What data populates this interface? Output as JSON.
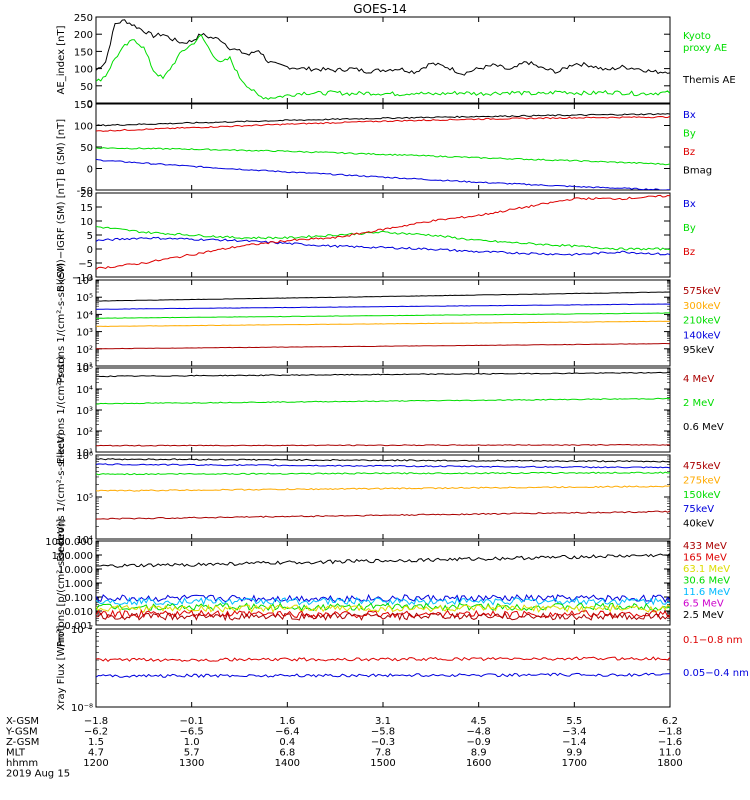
{
  "title": "GOES-14",
  "colors": {
    "black": "#000000",
    "red": "#dd0000",
    "green": "#00dd00",
    "blue": "#0000dd",
    "orange": "#ffaa00",
    "cyan": "#00bbff",
    "magenta": "#cc00cc",
    "yellow": "#dddd00",
    "darkred": "#aa0000"
  },
  "chart_data": [
    {
      "type": "line",
      "id": "ae",
      "ylabel": "AE_index [nT]",
      "ylim": [
        0,
        250
      ],
      "scale": "linear",
      "yticks": [
        0,
        50,
        100,
        150,
        200,
        250
      ],
      "tick_labels": [
        "0",
        "50",
        "100",
        "150",
        "200",
        "250"
      ],
      "legend": [
        {
          "label": "Kyoto",
          "color": "green"
        },
        {
          "label": "proxy AE",
          "color": "green"
        },
        {
          "label": "Themis AE",
          "color": "black"
        }
      ],
      "series": [
        {
          "name": "Themis AE",
          "color": "black",
          "x": [
            1200,
            1206,
            1212,
            1218,
            1224,
            1230,
            1236,
            1242,
            1248,
            1254,
            1300,
            1306,
            1312,
            1318,
            1324,
            1330,
            1336,
            1342,
            1348,
            1354,
            1400,
            1410,
            1420,
            1430,
            1440,
            1450,
            1500,
            1510,
            1520,
            1530,
            1540,
            1550,
            1600,
            1610,
            1620,
            1630,
            1640,
            1650,
            1700,
            1710,
            1720,
            1730,
            1740,
            1750,
            1800
          ],
          "y": [
            95,
            120,
            230,
            240,
            225,
            210,
            195,
            200,
            185,
            175,
            180,
            200,
            190,
            185,
            160,
            150,
            140,
            155,
            120,
            110,
            105,
            100,
            98,
            95,
            100,
            92,
            96,
            100,
            90,
            115,
            105,
            85,
            100,
            110,
            95,
            120,
            100,
            90,
            115,
            110,
            95,
            105,
            100,
            90,
            92
          ]
        },
        {
          "name": "Kyoto proxy AE",
          "color": "green",
          "x": [
            1200,
            1206,
            1212,
            1218,
            1224,
            1230,
            1236,
            1242,
            1248,
            1254,
            1300,
            1306,
            1312,
            1318,
            1324,
            1330,
            1336,
            1342,
            1348,
            1354,
            1400,
            1410,
            1420,
            1430,
            1440,
            1450,
            1500,
            1510,
            1520,
            1530,
            1540,
            1550,
            1600,
            1610,
            1620,
            1630,
            1640,
            1650,
            1700,
            1710,
            1720,
            1730,
            1740,
            1750,
            1800
          ],
          "y": [
            60,
            80,
            130,
            165,
            185,
            160,
            95,
            70,
            110,
            150,
            170,
            195,
            150,
            115,
            130,
            75,
            45,
            20,
            15,
            18,
            22,
            30,
            28,
            30,
            27,
            29,
            28,
            26,
            30,
            25,
            28,
            30,
            27,
            29,
            31,
            28,
            26,
            33,
            30,
            28,
            32,
            30,
            27,
            29,
            30
          ]
        }
      ]
    },
    {
      "type": "line",
      "id": "bsm",
      "ylabel": "B (SM) [nT]",
      "ylim": [
        -50,
        150
      ],
      "scale": "linear",
      "yticks": [
        -50,
        0,
        50,
        100,
        150
      ],
      "tick_labels": [
        "-50",
        "0",
        "50",
        "100",
        "150"
      ],
      "legend": [
        {
          "label": "Bx",
          "color": "blue"
        },
        {
          "label": "By",
          "color": "green"
        },
        {
          "label": "Bz",
          "color": "red"
        },
        {
          "label": "Bmag",
          "color": "black"
        }
      ],
      "series": [
        {
          "name": "Bx",
          "color": "blue",
          "x": [
            1200,
            1300,
            1400,
            1500,
            1600,
            1700,
            1800
          ],
          "y": [
            20,
            5,
            -8,
            -20,
            -32,
            -42,
            -50
          ]
        },
        {
          "name": "By",
          "color": "green",
          "x": [
            1200,
            1300,
            1400,
            1500,
            1600,
            1700,
            1800
          ],
          "y": [
            48,
            45,
            40,
            33,
            25,
            18,
            10
          ]
        },
        {
          "name": "Bz",
          "color": "red",
          "x": [
            1200,
            1300,
            1400,
            1500,
            1600,
            1700,
            1800
          ],
          "y": [
            87,
            95,
            103,
            110,
            115,
            118,
            120
          ]
        },
        {
          "name": "Bmag",
          "color": "black",
          "x": [
            1200,
            1300,
            1400,
            1500,
            1600,
            1700,
            1800
          ],
          "y": [
            100,
            106,
            112,
            117,
            121,
            124,
            127
          ]
        }
      ]
    },
    {
      "type": "line",
      "id": "bigrf",
      "ylabel": "B (SM)−IGRF (SM) [nT]",
      "ylim": [
        -10,
        20
      ],
      "scale": "linear",
      "yticks": [
        -10,
        -5,
        0,
        5,
        10,
        15,
        20
      ],
      "tick_labels": [
        "−10",
        "−5",
        "0",
        "5",
        "10",
        "15",
        "20"
      ],
      "legend": [
        {
          "label": "Bx",
          "color": "blue"
        },
        {
          "label": "By",
          "color": "green"
        },
        {
          "label": "Bz",
          "color": "red"
        }
      ],
      "series": [
        {
          "name": "Bx",
          "color": "blue",
          "x": [
            1200,
            1230,
            1300,
            1330,
            1400,
            1430,
            1500,
            1530,
            1600,
            1630,
            1700,
            1730,
            1800
          ],
          "y": [
            3,
            4,
            3.5,
            3,
            2,
            1,
            0.5,
            0,
            -1,
            -1.5,
            -2,
            -1,
            -2
          ]
        },
        {
          "name": "By",
          "color": "green",
          "x": [
            1200,
            1230,
            1300,
            1330,
            1400,
            1430,
            1500,
            1530,
            1600,
            1630,
            1700,
            1730,
            1800
          ],
          "y": [
            8,
            6,
            5,
            4,
            4,
            5,
            6,
            5,
            3,
            2,
            1,
            0,
            0
          ]
        },
        {
          "name": "Bz",
          "color": "red",
          "x": [
            1200,
            1230,
            1300,
            1330,
            1400,
            1430,
            1500,
            1530,
            1600,
            1630,
            1700,
            1730,
            1800
          ],
          "y": [
            -7,
            -5,
            -2,
            1,
            3,
            4,
            7,
            10,
            12,
            15,
            18,
            18,
            19
          ]
        }
      ]
    },
    {
      "type": "line",
      "id": "protons1",
      "ylabel": "Protons 1/(cm²-s-sr-keV)",
      "ylim": [
        10,
        1000000
      ],
      "scale": "log",
      "yticks": [
        10,
        100,
        1000,
        10000,
        100000,
        1000000
      ],
      "tick_labels": [
        "10¹",
        "10²",
        "10³",
        "10⁴",
        "10⁵",
        "10⁶"
      ],
      "legend": [
        {
          "label": "575keV",
          "color": "darkred"
        },
        {
          "label": "300keV",
          "color": "orange"
        },
        {
          "label": "210keV",
          "color": "green"
        },
        {
          "label": "140keV",
          "color": "blue"
        },
        {
          "label": "95keV",
          "color": "black"
        }
      ],
      "series": [
        {
          "name": "95keV",
          "color": "black",
          "x": [
            1200,
            1800
          ],
          "y": [
            60000,
            200000
          ]
        },
        {
          "name": "140keV",
          "color": "blue",
          "x": [
            1200,
            1800
          ],
          "y": [
            20000,
            40000
          ]
        },
        {
          "name": "210keV",
          "color": "green",
          "x": [
            1200,
            1800
          ],
          "y": [
            6000,
            12000
          ]
        },
        {
          "name": "300keV",
          "color": "orange",
          "x": [
            1200,
            1800
          ],
          "y": [
            2000,
            4000
          ]
        },
        {
          "name": "575keV",
          "color": "darkred",
          "x": [
            1200,
            1800
          ],
          "y": [
            100,
            200
          ]
        }
      ]
    },
    {
      "type": "line",
      "id": "electrons1",
      "ylabel": "Electrons 1/(cm²-s-sr)",
      "ylim": [
        10,
        100000
      ],
      "scale": "log",
      "yticks": [
        10,
        100,
        1000,
        10000,
        100000
      ],
      "tick_labels": [
        "10¹",
        "10²",
        "10³",
        "10⁴",
        "10⁵"
      ],
      "legend": [
        {
          "label": "4 MeV",
          "color": "darkred"
        },
        {
          "label": "2 MeV",
          "color": "green"
        },
        {
          "label": "0.6 MeV",
          "color": "black"
        }
      ],
      "series": [
        {
          "name": "0.6 MeV",
          "color": "black",
          "x": [
            1200,
            1800
          ],
          "y": [
            40000,
            60000
          ]
        },
        {
          "name": "2 MeV",
          "color": "green",
          "x": [
            1200,
            1800
          ],
          "y": [
            2000,
            3500
          ]
        },
        {
          "name": "4 MeV",
          "color": "darkred",
          "x": [
            1200,
            1800
          ],
          "y": [
            20,
            22
          ]
        }
      ]
    },
    {
      "type": "line",
      "id": "electrons2",
      "ylabel": "Electrons 1/(cm²-s-sr-keV)",
      "ylim": [
        10000,
        1000000
      ],
      "scale": "log",
      "yticks": [
        10000,
        100000,
        1000000
      ],
      "tick_labels": [
        "10⁴",
        "10⁵",
        "10⁶"
      ],
      "legend": [
        {
          "label": "475keV",
          "color": "darkred"
        },
        {
          "label": "275keV",
          "color": "orange"
        },
        {
          "label": "150keV",
          "color": "green"
        },
        {
          "label": "75keV",
          "color": "blue"
        },
        {
          "label": "40keV",
          "color": "black"
        }
      ],
      "series": [
        {
          "name": "40keV",
          "color": "black",
          "x": [
            1200,
            1800
          ],
          "y": [
            800000,
            700000
          ]
        },
        {
          "name": "75keV",
          "color": "blue",
          "x": [
            1200,
            1800
          ],
          "y": [
            600000,
            500000
          ]
        },
        {
          "name": "150keV",
          "color": "green",
          "x": [
            1200,
            1800
          ],
          "y": [
            350000,
            380000
          ]
        },
        {
          "name": "275keV",
          "color": "orange",
          "x": [
            1200,
            1800
          ],
          "y": [
            140000,
            180000
          ]
        },
        {
          "name": "475keV",
          "color": "darkred",
          "x": [
            1200,
            1800
          ],
          "y": [
            30000,
            45000
          ]
        }
      ]
    },
    {
      "type": "line",
      "id": "protons2",
      "ylabel": "Protons [p/(cm²-s-sr-keV)]",
      "ylim": [
        0.001,
        1000
      ],
      "scale": "log",
      "yticks": [
        0.001,
        0.01,
        0.1,
        1,
        10,
        100,
        1000
      ],
      "tick_labels": [
        "0.001",
        "0.010",
        "0.100",
        "1.000",
        "10.000",
        "100.000",
        "1000.000"
      ],
      "legend": [
        {
          "label": "433 MeV",
          "color": "darkred"
        },
        {
          "label": "165 MeV",
          "color": "red"
        },
        {
          "label": "63.1 MeV",
          "color": "yellow"
        },
        {
          "label": "30.6 MeV",
          "color": "green"
        },
        {
          "label": "11.6 MeV",
          "color": "cyan"
        },
        {
          "label": "6.5 MeV",
          "color": "magenta"
        },
        {
          "label": "2.5 MeV",
          "color": "black"
        }
      ],
      "series": [
        {
          "name": "2.5 MeV",
          "color": "black",
          "x": [
            1200,
            1800
          ],
          "y": [
            15,
            100
          ]
        },
        {
          "name": "6.5 MeV",
          "color": "blue",
          "x": [
            1200,
            1800
          ],
          "y": [
            0.08,
            0.08
          ]
        },
        {
          "name": "11.6 MeV",
          "color": "cyan",
          "x": [
            1200,
            1800
          ],
          "y": [
            0.05,
            0.05
          ]
        },
        {
          "name": "30.6 MeV",
          "color": "green",
          "x": [
            1200,
            1800
          ],
          "y": [
            0.02,
            0.02
          ]
        },
        {
          "name": "63.1 MeV",
          "color": "yellow",
          "x": [
            1200,
            1800
          ],
          "y": [
            0.015,
            0.015
          ]
        },
        {
          "name": "165 MeV",
          "color": "red",
          "x": [
            1200,
            1800
          ],
          "y": [
            0.006,
            0.006
          ]
        },
        {
          "name": "433 MeV",
          "color": "darkred",
          "x": [
            1200,
            1800
          ],
          "y": [
            0.004,
            0.004
          ]
        }
      ]
    },
    {
      "type": "line",
      "id": "xray",
      "ylabel": "Xray Flux [W/m²]",
      "ylim": [
        1e-08,
        1e-07
      ],
      "scale": "log",
      "yticks": [
        1e-08,
        1e-07
      ],
      "tick_labels": [
        "10⁻⁸",
        "10⁻⁷"
      ],
      "legend": [
        {
          "label": "0.1−0.8 nm",
          "color": "red"
        },
        {
          "label": "0.05−0.4 nm",
          "color": "blue"
        }
      ],
      "series": [
        {
          "name": "0.1−0.8 nm",
          "color": "red",
          "x": [
            1200,
            1800
          ],
          "y": [
            4e-08,
            4.2e-08
          ]
        },
        {
          "name": "0.05−0.4 nm",
          "color": "blue",
          "x": [
            1200,
            1800
          ],
          "y": [
            2.5e-08,
            2.6e-08
          ]
        }
      ]
    }
  ],
  "x_axis": {
    "xlim": [
      1200,
      1800
    ],
    "ticks": [
      1200,
      1300,
      1400,
      1500,
      1600,
      1700,
      1800
    ],
    "rows": [
      {
        "label": "X-GSM",
        "values": [
          "−1.8",
          "−0.1",
          "1.6",
          "3.1",
          "4.5",
          "5.5",
          "6.2"
        ]
      },
      {
        "label": "Y-GSM",
        "values": [
          "−6.2",
          "−6.5",
          "−6.4",
          "−5.8",
          "−4.8",
          "−3.4",
          "−1.8"
        ]
      },
      {
        "label": "Z-GSM",
        "values": [
          "1.5",
          "1.0",
          "0.4",
          "−0.3",
          "−0.9",
          "−1.4",
          "−1.6"
        ]
      },
      {
        "label": "MLT",
        "values": [
          "4.7",
          "5.7",
          "6.8",
          "7.8",
          "8.9",
          "9.9",
          "11.0"
        ]
      },
      {
        "label": "hhmm",
        "values": [
          "1200",
          "1300",
          "1400",
          "1500",
          "1600",
          "1700",
          "1800"
        ]
      }
    ],
    "date": "2019 Aug 15"
  }
}
